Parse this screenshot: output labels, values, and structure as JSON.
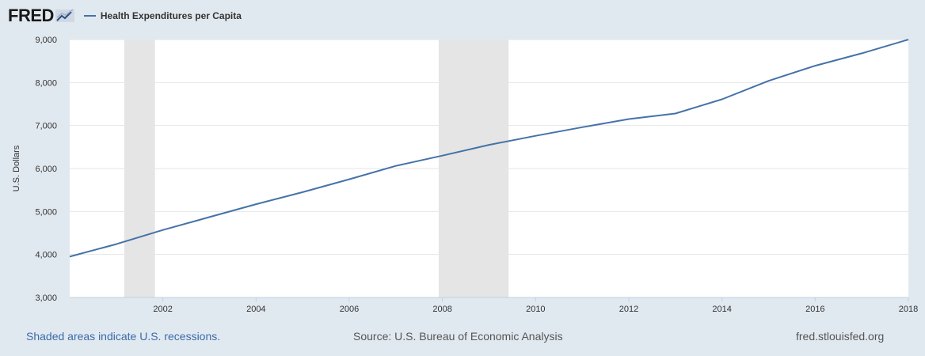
{
  "header": {
    "logo_text": "FRED",
    "legend_label": "Health Expenditures per Capita"
  },
  "footer": {
    "recession_note": "Shaded areas indicate U.S. recessions.",
    "source": "Source: U.S. Bureau of Economic Analysis",
    "site": "fred.stlouisfed.org"
  },
  "colors": {
    "series": "#4572a7",
    "recession": "#e5e5e5",
    "background": "#e1e9f0",
    "plot": "#ffffff"
  },
  "chart_data": {
    "type": "line",
    "title": "",
    "xlabel": "",
    "ylabel": "U.S. Dollars",
    "xlim": [
      2000,
      2018
    ],
    "ylim": [
      3000,
      9000
    ],
    "x_ticks": [
      "2002",
      "2004",
      "2006",
      "2008",
      "2010",
      "2012",
      "2014",
      "2016",
      "2018"
    ],
    "y_ticks": [
      "3,000",
      "4,000",
      "5,000",
      "6,000",
      "7,000",
      "8,000",
      "9,000"
    ],
    "grid": true,
    "legend_position": "top-left",
    "recessions": [
      [
        2001.17,
        2001.83
      ],
      [
        2007.92,
        2009.42
      ]
    ],
    "series": [
      {
        "name": "Health Expenditures per Capita",
        "x": [
          2000,
          2001,
          2002,
          2003,
          2004,
          2005,
          2006,
          2007,
          2008,
          2009,
          2010,
          2011,
          2012,
          2013,
          2014,
          2015,
          2016,
          2017,
          2018
        ],
        "y": [
          3950,
          4240,
          4570,
          4870,
          5170,
          5450,
          5750,
          6060,
          6300,
          6550,
          6760,
          6960,
          7150,
          7280,
          7610,
          8040,
          8390,
          8680,
          9000
        ]
      }
    ]
  }
}
